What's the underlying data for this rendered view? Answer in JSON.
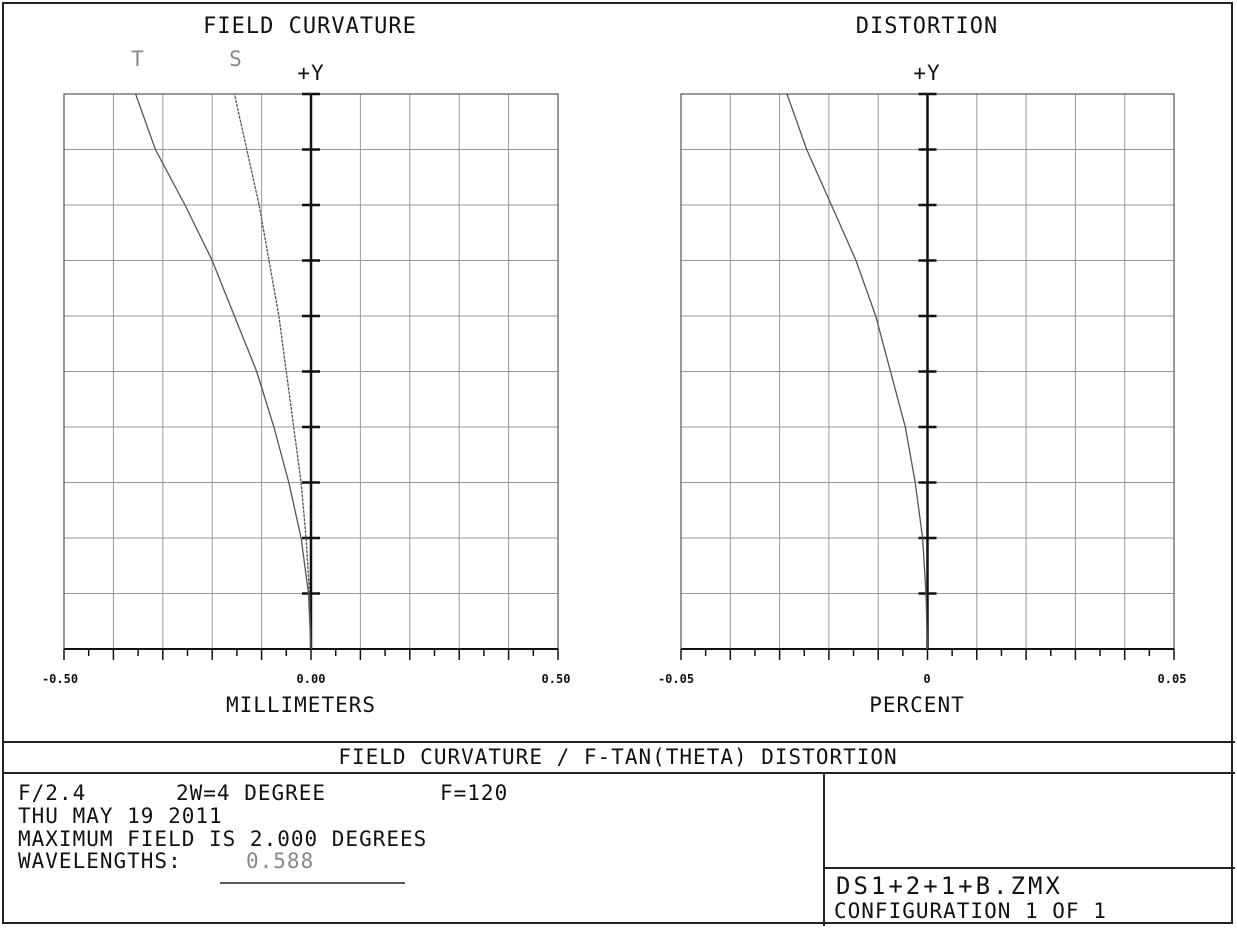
{
  "footer": {
    "title": "FIELD CURVATURE / F-TAN(THETA) DISTORTION",
    "line1_fnum": "F/2.4",
    "line1_fov": "2W=4 DEGREE",
    "line1_focal": "F=120",
    "line2": "THU MAY 19 2011",
    "line3": "MAXIMUM FIELD IS 2.000 DEGREES",
    "line4_label": "WAVELENGTHS:",
    "line4_value": "0.588",
    "file": "DS1+2+1+B.ZMX",
    "config": "CONFIGURATION 1 OF 1"
  },
  "chart_data": [
    {
      "type": "line",
      "title": "FIELD CURVATURE",
      "y_axis_label": "+Y",
      "xlabel": "MILLIMETERS",
      "xlim": [
        -0.5,
        0.5
      ],
      "ylim": [
        0,
        1
      ],
      "x_tick_labels": [
        "-0.50",
        "0.00",
        "0.50"
      ],
      "grid": true,
      "legend": [
        "T",
        "S"
      ],
      "series": [
        {
          "name": "T",
          "color": "#555555",
          "points": [
            [
              0.0,
              0.0
            ],
            [
              -0.005,
              0.1
            ],
            [
              -0.02,
              0.2
            ],
            [
              -0.045,
              0.3
            ],
            [
              -0.075,
              0.4
            ],
            [
              -0.11,
              0.5
            ],
            [
              -0.155,
              0.6
            ],
            [
              -0.2,
              0.7
            ],
            [
              -0.255,
              0.8
            ],
            [
              -0.315,
              0.9
            ],
            [
              -0.355,
              1.0
            ]
          ]
        },
        {
          "name": "S",
          "color": "#555555",
          "points": [
            [
              0.0,
              0.0
            ],
            [
              -0.003,
              0.1
            ],
            [
              -0.01,
              0.2
            ],
            [
              -0.02,
              0.3
            ],
            [
              -0.035,
              0.4
            ],
            [
              -0.05,
              0.5
            ],
            [
              -0.065,
              0.6
            ],
            [
              -0.085,
              0.7
            ],
            [
              -0.105,
              0.8
            ],
            [
              -0.13,
              0.9
            ],
            [
              -0.155,
              1.0
            ]
          ]
        }
      ]
    },
    {
      "type": "line",
      "title": "DISTORTION",
      "y_axis_label": "+Y",
      "xlabel": "PERCENT",
      "xlim": [
        -0.05,
        0.05
      ],
      "ylim": [
        0,
        1
      ],
      "x_tick_labels": [
        "-0.05",
        "0",
        "0.05"
      ],
      "grid": true,
      "series": [
        {
          "name": "",
          "color": "#555555",
          "points": [
            [
              0.0,
              0.0
            ],
            [
              -0.0003,
              0.1
            ],
            [
              -0.001,
              0.2
            ],
            [
              -0.0025,
              0.3
            ],
            [
              -0.0045,
              0.4
            ],
            [
              -0.0075,
              0.5
            ],
            [
              -0.0105,
              0.6
            ],
            [
              -0.0145,
              0.7
            ],
            [
              -0.0195,
              0.8
            ],
            [
              -0.0245,
              0.9
            ],
            [
              -0.0285,
              1.0
            ]
          ]
        }
      ]
    }
  ]
}
